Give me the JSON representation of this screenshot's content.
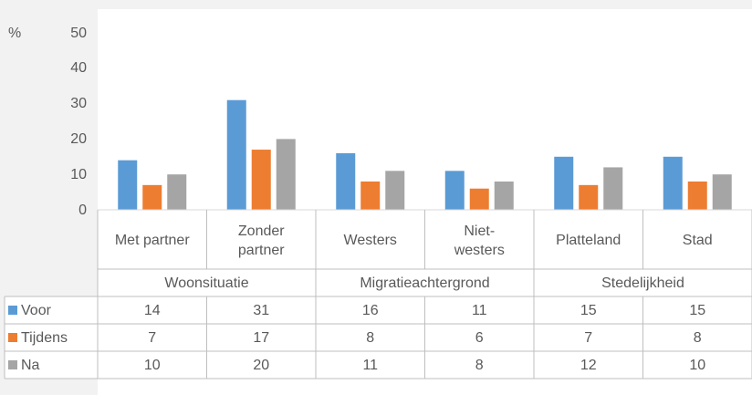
{
  "chart_data": {
    "type": "bar",
    "ylabel": "%",
    "categories": [
      "Met partner",
      "Zonder partner",
      "Westers",
      "Niet-westers",
      "Platteland",
      "Stad"
    ],
    "category_groups": [
      "Woonsituatie",
      "Migratieachtergrond",
      "Stedelijkheid"
    ],
    "series": [
      {
        "name": "Voor",
        "color": "#5b9bd5",
        "values": [
          14,
          31,
          16,
          11,
          15,
          15
        ]
      },
      {
        "name": "Tijdens",
        "color": "#ed7d31",
        "values": [
          7,
          17,
          8,
          6,
          7,
          8
        ]
      },
      {
        "name": "Na",
        "color": "#a5a5a5",
        "values": [
          10,
          20,
          11,
          8,
          12,
          10
        ]
      }
    ],
    "ylim": [
      0,
      50
    ],
    "yticks": [
      0,
      10,
      20,
      30,
      40,
      50
    ],
    "grid": false
  }
}
